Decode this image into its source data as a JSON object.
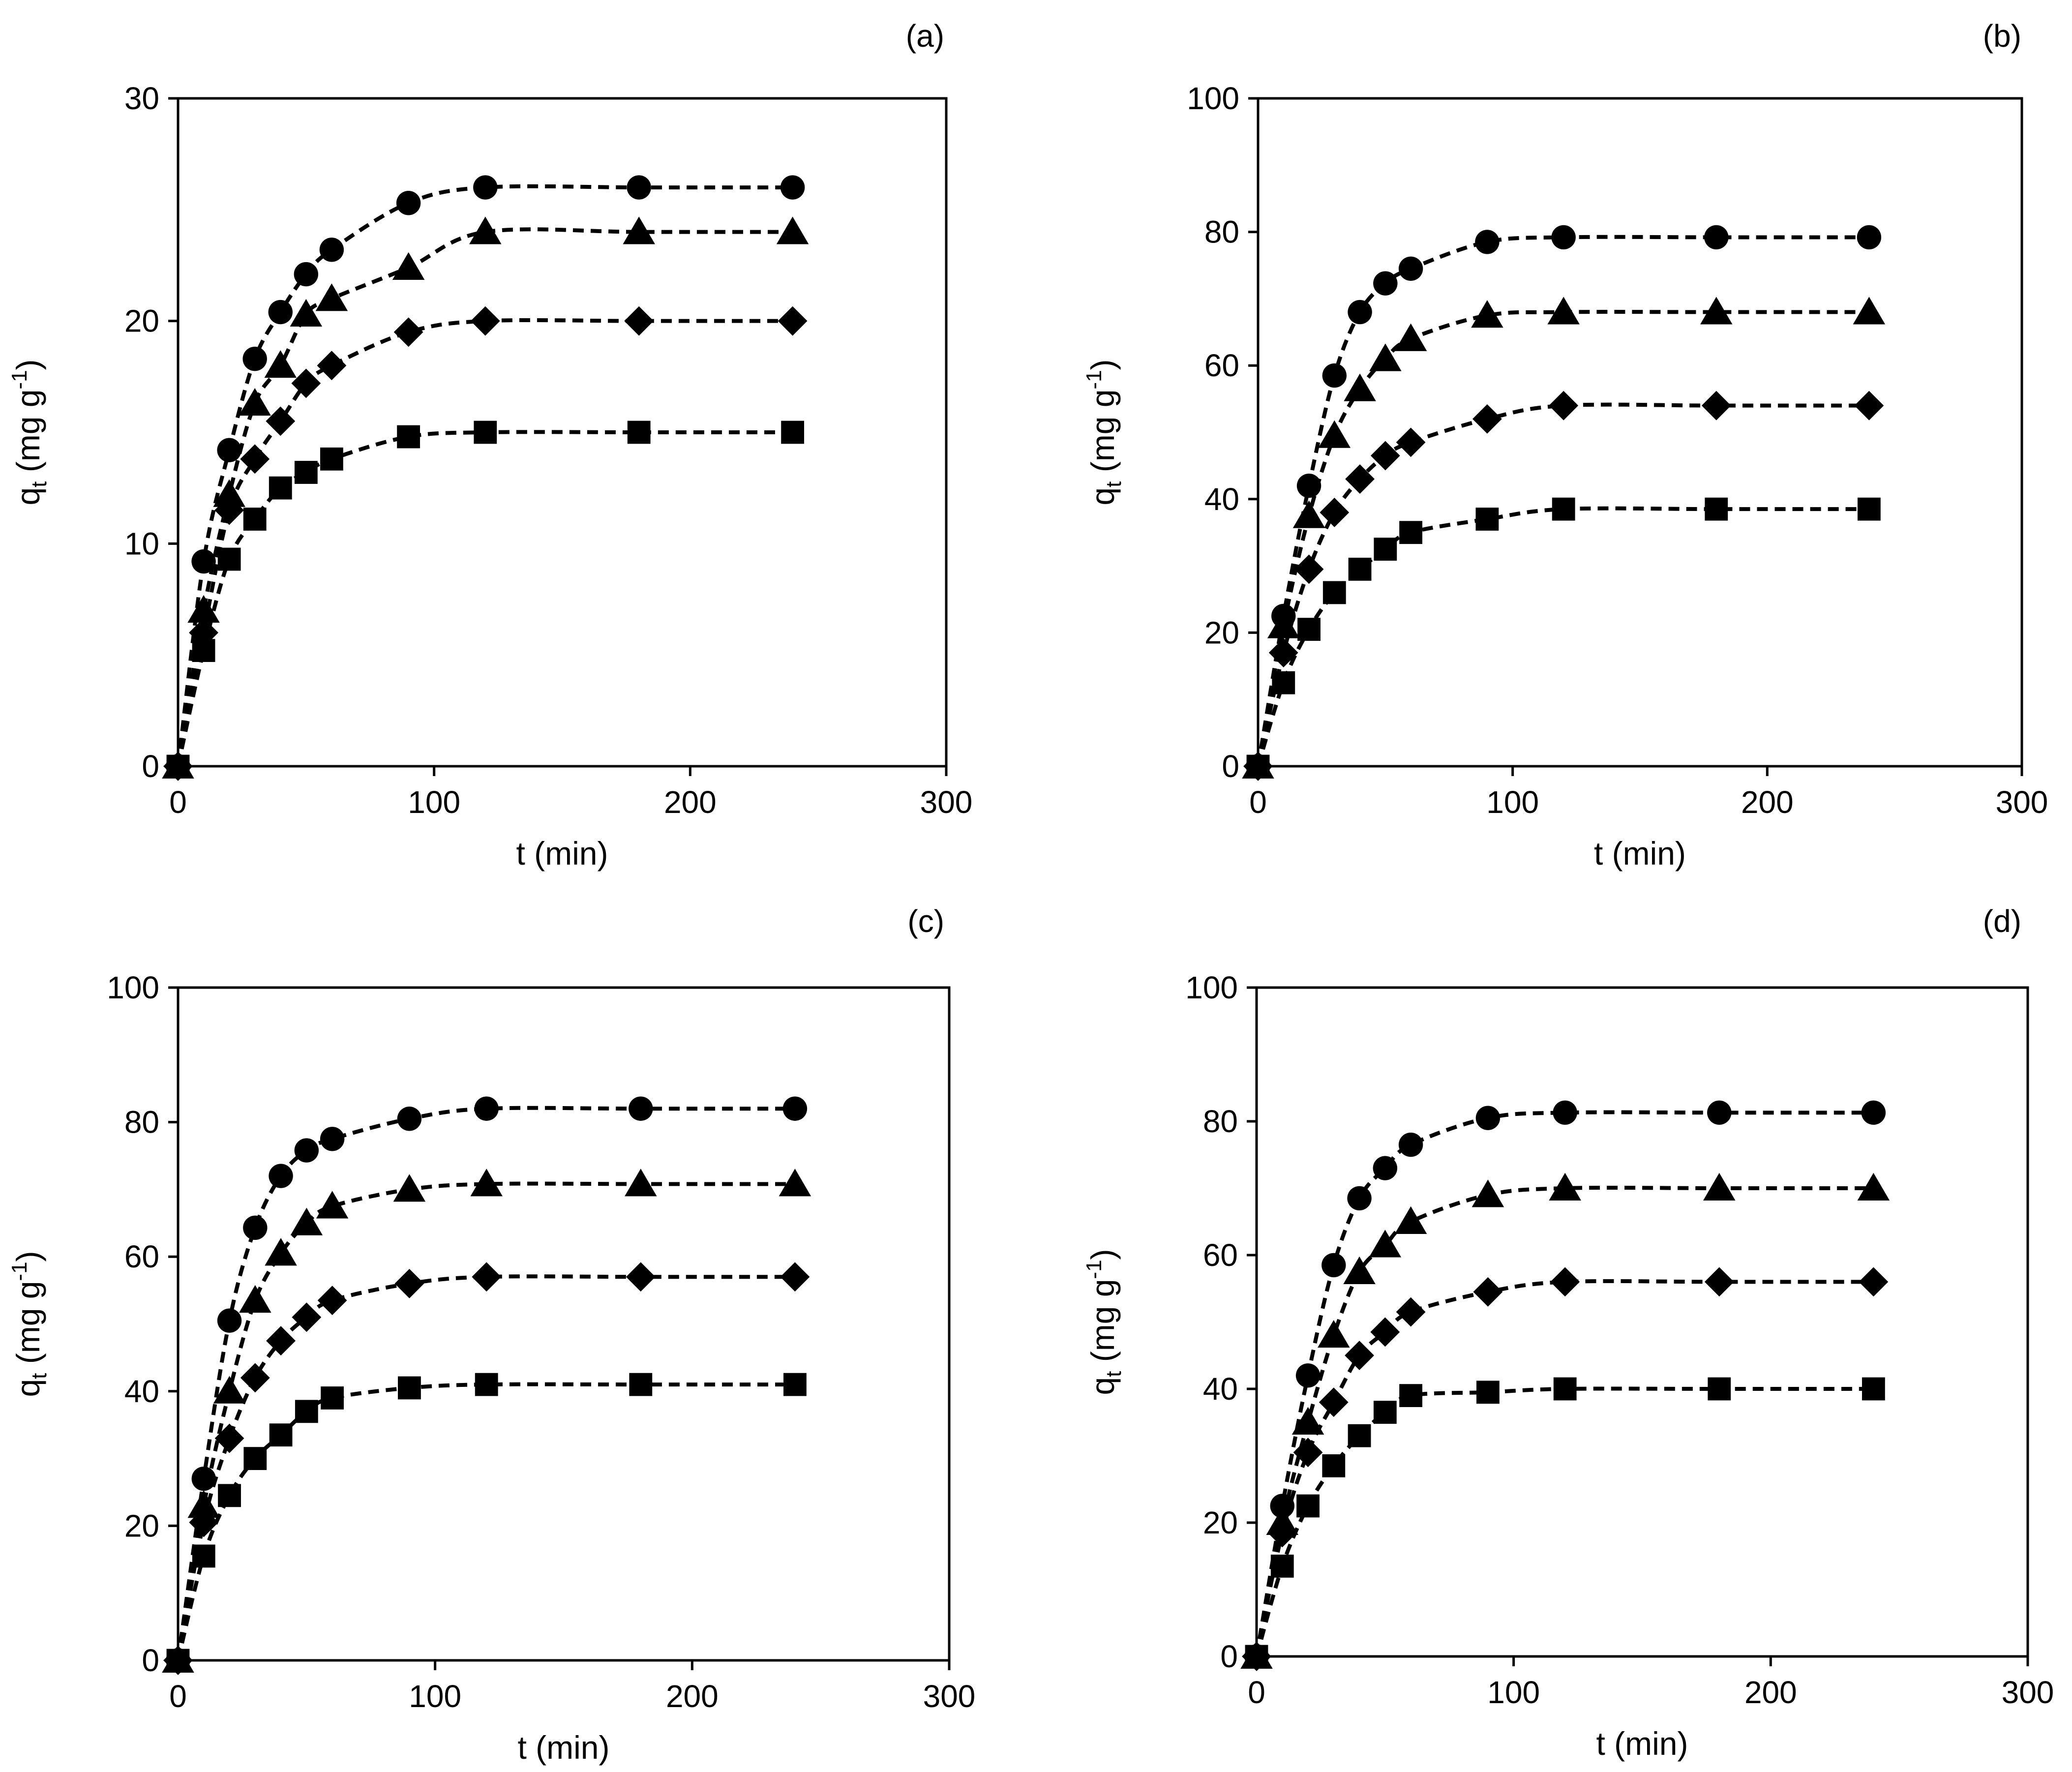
{
  "chart_data": [
    {
      "type": "line",
      "panel_label": "(a)",
      "xlabel": "t (min)",
      "ylabel_main": "q",
      "ylabel_sub": "t",
      "ylabel_unit": "(mg g",
      "ylabel_sup": "-1",
      "ylabel_close": ")",
      "xlim": [
        0,
        300
      ],
      "ylim": [
        0,
        30
      ],
      "xticks": [
        0,
        100,
        200,
        300
      ],
      "yticks": [
        0,
        10,
        20,
        30
      ],
      "grid": false,
      "line_style": "dashed",
      "x": [
        0,
        10,
        20,
        30,
        40,
        50,
        60,
        90,
        120,
        180,
        240
      ],
      "series": [
        {
          "marker": "circle",
          "values": [
            0,
            9.2,
            14.2,
            18.3,
            20.4,
            22.1,
            23.2,
            25.3,
            26.0,
            26.0,
            26.0
          ]
        },
        {
          "marker": "triangle",
          "values": [
            0,
            7.0,
            12.2,
            16.3,
            18.0,
            20.3,
            21.0,
            22.4,
            24.0,
            24.0,
            24.0
          ]
        },
        {
          "marker": "diamond",
          "values": [
            0,
            6.0,
            11.5,
            13.8,
            15.5,
            17.2,
            18.0,
            19.5,
            20.0,
            20.0,
            20.0
          ]
        },
        {
          "marker": "square",
          "values": [
            0,
            5.2,
            9.3,
            11.1,
            12.5,
            13.2,
            13.8,
            14.8,
            15.0,
            15.0,
            15.0
          ]
        }
      ]
    },
    {
      "type": "line",
      "panel_label": "(b)",
      "xlabel": "t (min)",
      "ylabel_main": "q",
      "ylabel_sub": "t",
      "ylabel_unit": "(mg g",
      "ylabel_sup": "-1",
      "ylabel_close": ")",
      "xlim": [
        0,
        300
      ],
      "ylim": [
        0,
        100
      ],
      "xticks": [
        0,
        100,
        200,
        300
      ],
      "yticks": [
        0,
        20,
        40,
        60,
        80,
        100
      ],
      "grid": false,
      "line_style": "dashed",
      "x": [
        0,
        10,
        20,
        30,
        40,
        50,
        60,
        90,
        120,
        180,
        240
      ],
      "series": [
        {
          "marker": "circle",
          "values": [
            0,
            22.5,
            42.0,
            58.5,
            68.0,
            72.3,
            74.5,
            78.5,
            79.2,
            79.2,
            79.2
          ]
        },
        {
          "marker": "triangle",
          "values": [
            0,
            21.0,
            37.5,
            49.5,
            56.5,
            61.0,
            64.0,
            67.5,
            68.0,
            68.0,
            68.0
          ]
        },
        {
          "marker": "diamond",
          "values": [
            0,
            17.0,
            29.5,
            38.0,
            43.0,
            46.5,
            48.5,
            52.0,
            54.0,
            54.0,
            54.0
          ]
        },
        {
          "marker": "square",
          "values": [
            0,
            12.5,
            20.5,
            26.0,
            29.5,
            32.5,
            35.0,
            37.0,
            38.5,
            38.5,
            38.5
          ]
        }
      ]
    },
    {
      "type": "line",
      "panel_label": "(c)",
      "xlabel": "t (min)",
      "ylabel_main": "q",
      "ylabel_sub": "t",
      "ylabel_unit": "(mg g",
      "ylabel_sup": "-1",
      "ylabel_close": ")",
      "xlim": [
        0,
        300
      ],
      "ylim": [
        0,
        100
      ],
      "xticks": [
        0,
        100,
        200,
        300
      ],
      "yticks": [
        0,
        20,
        40,
        60,
        80,
        100
      ],
      "grid": false,
      "line_style": "dashed",
      "x": [
        0,
        10,
        20,
        30,
        40,
        50,
        60,
        90,
        120,
        180,
        240
      ],
      "series": [
        {
          "marker": "circle",
          "values": [
            0,
            27.0,
            50.5,
            64.3,
            72.0,
            75.8,
            77.5,
            80.5,
            82.0,
            82.0,
            82.0
          ]
        },
        {
          "marker": "triangle",
          "values": [
            0,
            23.0,
            40.0,
            53.5,
            60.5,
            65.0,
            67.5,
            70.0,
            70.8,
            70.8,
            70.8
          ]
        },
        {
          "marker": "diamond",
          "values": [
            0,
            20.5,
            33.0,
            42.0,
            47.5,
            51.0,
            53.5,
            56.0,
            57.0,
            57.0,
            57.0
          ]
        },
        {
          "marker": "square",
          "values": [
            0,
            15.5,
            24.5,
            30.0,
            33.5,
            37.0,
            39.0,
            40.5,
            41.0,
            41.0,
            41.0
          ]
        }
      ]
    },
    {
      "type": "line",
      "panel_label": "(d)",
      "xlabel": "t (min)",
      "ylabel_main": "q",
      "ylabel_sub": "t",
      "ylabel_unit": "(mg g",
      "ylabel_sup": "-1",
      "ylabel_close": ")",
      "xlim": [
        0,
        300
      ],
      "ylim": [
        0,
        100
      ],
      "xticks": [
        0,
        100,
        200,
        300
      ],
      "yticks": [
        0,
        20,
        40,
        60,
        80,
        100
      ],
      "grid": false,
      "line_style": "dashed",
      "x": [
        0,
        10,
        20,
        30,
        40,
        50,
        60,
        90,
        120,
        180,
        240
      ],
      "series": [
        {
          "marker": "circle",
          "values": [
            0,
            22.5,
            42.0,
            58.5,
            68.5,
            73.0,
            76.5,
            80.5,
            81.3,
            81.3,
            81.3
          ]
        },
        {
          "marker": "triangle",
          "values": [
            0,
            20.0,
            35.0,
            48.0,
            57.5,
            61.5,
            65.0,
            69.0,
            70.0,
            70.0,
            70.0
          ]
        },
        {
          "marker": "diamond",
          "values": [
            0,
            18.5,
            30.5,
            38.0,
            45.0,
            48.5,
            51.5,
            54.5,
            56.0,
            56.0,
            56.0
          ]
        },
        {
          "marker": "square",
          "values": [
            0,
            13.5,
            22.5,
            28.5,
            33.0,
            36.5,
            39.0,
            39.5,
            40.0,
            40.0,
            40.0
          ]
        }
      ]
    }
  ]
}
